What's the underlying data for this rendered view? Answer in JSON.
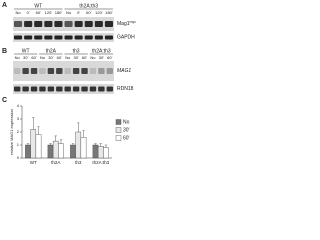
{
  "panels": {
    "A": {
      "label": "A",
      "groups": [
        "WT",
        "th2A:th3"
      ],
      "lanes": [
        "No",
        "0'",
        "60'",
        "120'",
        "180'",
        "No",
        "0'",
        "60'",
        "120'",
        "180'"
      ],
      "rows": [
        {
          "text": "Mag1",
          "sup": "myc"
        },
        {
          "text": "GAPDH"
        }
      ]
    },
    "B": {
      "label": "B",
      "groups": [
        "WT",
        "th2A",
        "th3",
        "th2A:th3"
      ],
      "lanes": [
        "No",
        "30'",
        "60'",
        "No",
        "30'",
        "60'",
        "No",
        "30'",
        "60'",
        "No",
        "30'",
        "60'"
      ],
      "rows": [
        {
          "text": "MAG1"
        },
        {
          "text": "RDN18"
        }
      ]
    }
  },
  "chart_data": {
    "type": "bar",
    "label": "C",
    "ylabel": "relative MAG1 expression",
    "categories": [
      "WT",
      "th2A",
      "th3",
      "th2A:th3"
    ],
    "series": [
      {
        "name": "No",
        "color": "#777777",
        "values": [
          1,
          1,
          1,
          1
        ],
        "errors": [
          0.1,
          0.1,
          0.1,
          0.1
        ]
      },
      {
        "name": "30'",
        "color": "#e8e8e8",
        "values": [
          2.2,
          1.3,
          2.0,
          0.9
        ],
        "errors": [
          0.9,
          0.4,
          0.7,
          0.2
        ]
      },
      {
        "name": "60'",
        "color": "#ffffff",
        "values": [
          1.8,
          1.1,
          1.6,
          0.8
        ],
        "errors": [
          0.6,
          0.3,
          0.5,
          0.2
        ]
      }
    ],
    "ylim": [
      0,
      4
    ],
    "yticks": [
      0,
      1,
      2,
      3,
      4
    ]
  }
}
